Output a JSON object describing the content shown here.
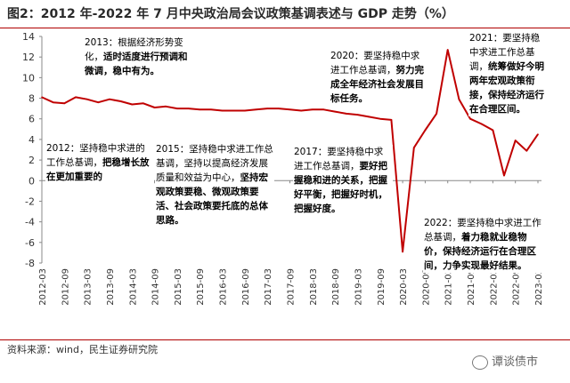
{
  "title": "图2：2012 年-2022 年 7 月中央政治局会议政策基调表述与 GDP 走势（%）",
  "source": "资料来源：wind，民生证券研究院",
  "watermark": "谭谈债市",
  "annotations": [
    {
      "id": "a2012",
      "year": "2012：",
      "text": "坚持稳中求进的工作总基调，",
      "bold": "把稳增长放在更加重要的"
    },
    {
      "id": "a2013",
      "year": "2013：",
      "text": "根据经济形势变化，",
      "bold": "适时适度进行预调和微调，稳中有为。"
    },
    {
      "id": "a2015",
      "year": "2015：",
      "text": "坚持稳中求进工作总基调，坚持以提高经济发展质量和效益为中心，",
      "bold": "坚持宏观政策要稳、微观政策要活、社会政策要托底的总体思路。"
    },
    {
      "id": "a2017",
      "year": "2017：",
      "text": "要坚持稳中求进工作总基调，",
      "bold": "要好把握稳和进的关系，把握好平衡，把握好时机，把握好度。"
    },
    {
      "id": "a2020",
      "year": "2020：",
      "text": "要坚持稳中求进工作总基调，",
      "bold": "努力完成全年经济社会发展目标任务。"
    },
    {
      "id": "a2021",
      "year": "2021：",
      "text": "要坚持稳中求进工作总基调，",
      "bold": "统筹做好今明两年宏观政策衔接，保持经济运行在合理区间。"
    },
    {
      "id": "a2022",
      "year": "2022：",
      "text": "要坚持稳中求进工作总基调，",
      "bold": "着力稳就业稳物价，保持经济运行在合理区间，力争实现最好结果。"
    }
  ],
  "chart_data": {
    "type": "line",
    "title": "",
    "xlabel": "",
    "ylabel": "",
    "ylim": [
      -8,
      14
    ],
    "yticks": [
      -8,
      -6,
      -4,
      -2,
      0,
      2,
      4,
      6,
      8,
      10,
      12,
      14
    ],
    "xticks": [
      "2012-03",
      "2012-09",
      "2013-03",
      "2013-09",
      "2014-03",
      "2014-09",
      "2015-03",
      "2015-09",
      "2016-03",
      "2016-09",
      "2017-03",
      "2017-09",
      "2018-03",
      "2018-09",
      "2019-03",
      "2019-09",
      "2020-03",
      "2020-09",
      "2021-03",
      "2021-09",
      "2022-03",
      "2022-09",
      "2023-03"
    ],
    "grid": false,
    "color": "#c00000",
    "series": [
      {
        "x": [
          "2012-03",
          "2012-06",
          "2012-09",
          "2012-12",
          "2013-03",
          "2013-06",
          "2013-09",
          "2013-12",
          "2014-03",
          "2014-06",
          "2014-09",
          "2014-12",
          "2015-03",
          "2015-06",
          "2015-09",
          "2015-12",
          "2016-03",
          "2016-06",
          "2016-09",
          "2016-12",
          "2017-03",
          "2017-06",
          "2017-09",
          "2017-12",
          "2018-03",
          "2018-06",
          "2018-09",
          "2018-12",
          "2019-03",
          "2019-06",
          "2019-09",
          "2019-12",
          "2020-03",
          "2020-06",
          "2020-09",
          "2020-12",
          "2021-03",
          "2021-06",
          "2021-09",
          "2021-12",
          "2022-03",
          "2022-06",
          "2022-09",
          "2022-12",
          "2023-03"
        ],
        "values": [
          8.1,
          7.6,
          7.5,
          8.1,
          7.9,
          7.6,
          7.9,
          7.7,
          7.4,
          7.5,
          7.1,
          7.2,
          7.0,
          7.0,
          6.9,
          6.9,
          6.8,
          6.8,
          6.8,
          6.9,
          7.0,
          7.0,
          6.9,
          6.8,
          6.9,
          6.9,
          6.7,
          6.5,
          6.4,
          6.2,
          6.0,
          5.9,
          -6.9,
          3.2,
          4.9,
          6.5,
          12.7,
          7.9,
          6.0,
          5.5,
          4.9,
          0.5,
          3.9,
          2.9,
          4.5
        ]
      }
    ]
  }
}
